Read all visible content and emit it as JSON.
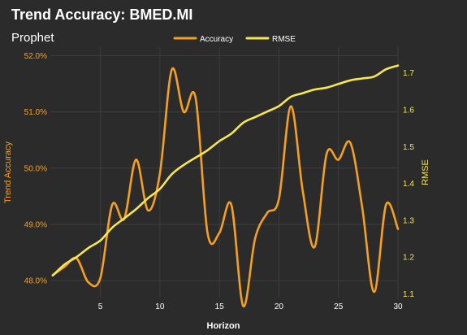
{
  "colors": {
    "background": "#2b2b2b",
    "grid": "#3d3d3d",
    "text": "#ffffff",
    "accuracy": "#f5a11f",
    "rmse": "#f7e64e"
  },
  "chart_data": {
    "type": "line",
    "title": "Trend Accuracy: BMED.MI",
    "subtitle": "Prophet",
    "xlabel": "Horizon",
    "ylabel_left": "Trend Accuracy",
    "ylabel_right": "RMSE",
    "legend_position": "top-center",
    "grid": true,
    "xlim": [
      0.8,
      30
    ],
    "x_ticks": [
      5,
      10,
      15,
      20,
      25,
      30
    ],
    "y_left": {
      "lim": [
        47.7,
        52.15
      ],
      "ticks": [
        48.0,
        49.0,
        50.0,
        51.0,
        52.0
      ],
      "tick_labels": [
        "48.0%",
        "49.0%",
        "50.0%",
        "51.0%",
        "52.0%"
      ]
    },
    "y_right": {
      "lim": [
        1.09,
        1.77
      ],
      "ticks": [
        1.1,
        1.2,
        1.3,
        1.4,
        1.5,
        1.6,
        1.7
      ],
      "tick_labels": [
        "1.1",
        "1.2",
        "1.3",
        "1.4",
        "1.5",
        "1.6",
        "1.7"
      ]
    },
    "x": [
      1,
      2,
      3,
      4,
      5,
      6,
      7,
      8,
      9,
      10,
      11,
      12,
      13,
      14,
      15,
      16,
      17,
      18,
      19,
      20,
      21,
      22,
      23,
      24,
      25,
      26,
      27,
      28,
      29,
      30
    ],
    "series": [
      {
        "name": "Accuracy",
        "axis": "left",
        "values": [
          48.1,
          48.25,
          48.4,
          47.97,
          48.05,
          49.35,
          49.1,
          50.15,
          49.25,
          49.9,
          51.75,
          51.0,
          51.25,
          48.85,
          48.85,
          49.35,
          47.55,
          48.75,
          49.2,
          49.45,
          51.1,
          49.6,
          48.6,
          50.25,
          50.15,
          50.45,
          49.3,
          47.8,
          49.35,
          48.92
        ]
      },
      {
        "name": "RMSE",
        "axis": "right",
        "values": [
          1.15,
          1.18,
          1.2,
          1.225,
          1.245,
          1.28,
          1.305,
          1.33,
          1.36,
          1.385,
          1.425,
          1.45,
          1.47,
          1.49,
          1.515,
          1.535,
          1.565,
          1.58,
          1.595,
          1.61,
          1.635,
          1.645,
          1.655,
          1.66,
          1.67,
          1.68,
          1.685,
          1.69,
          1.71,
          1.72
        ]
      }
    ]
  }
}
